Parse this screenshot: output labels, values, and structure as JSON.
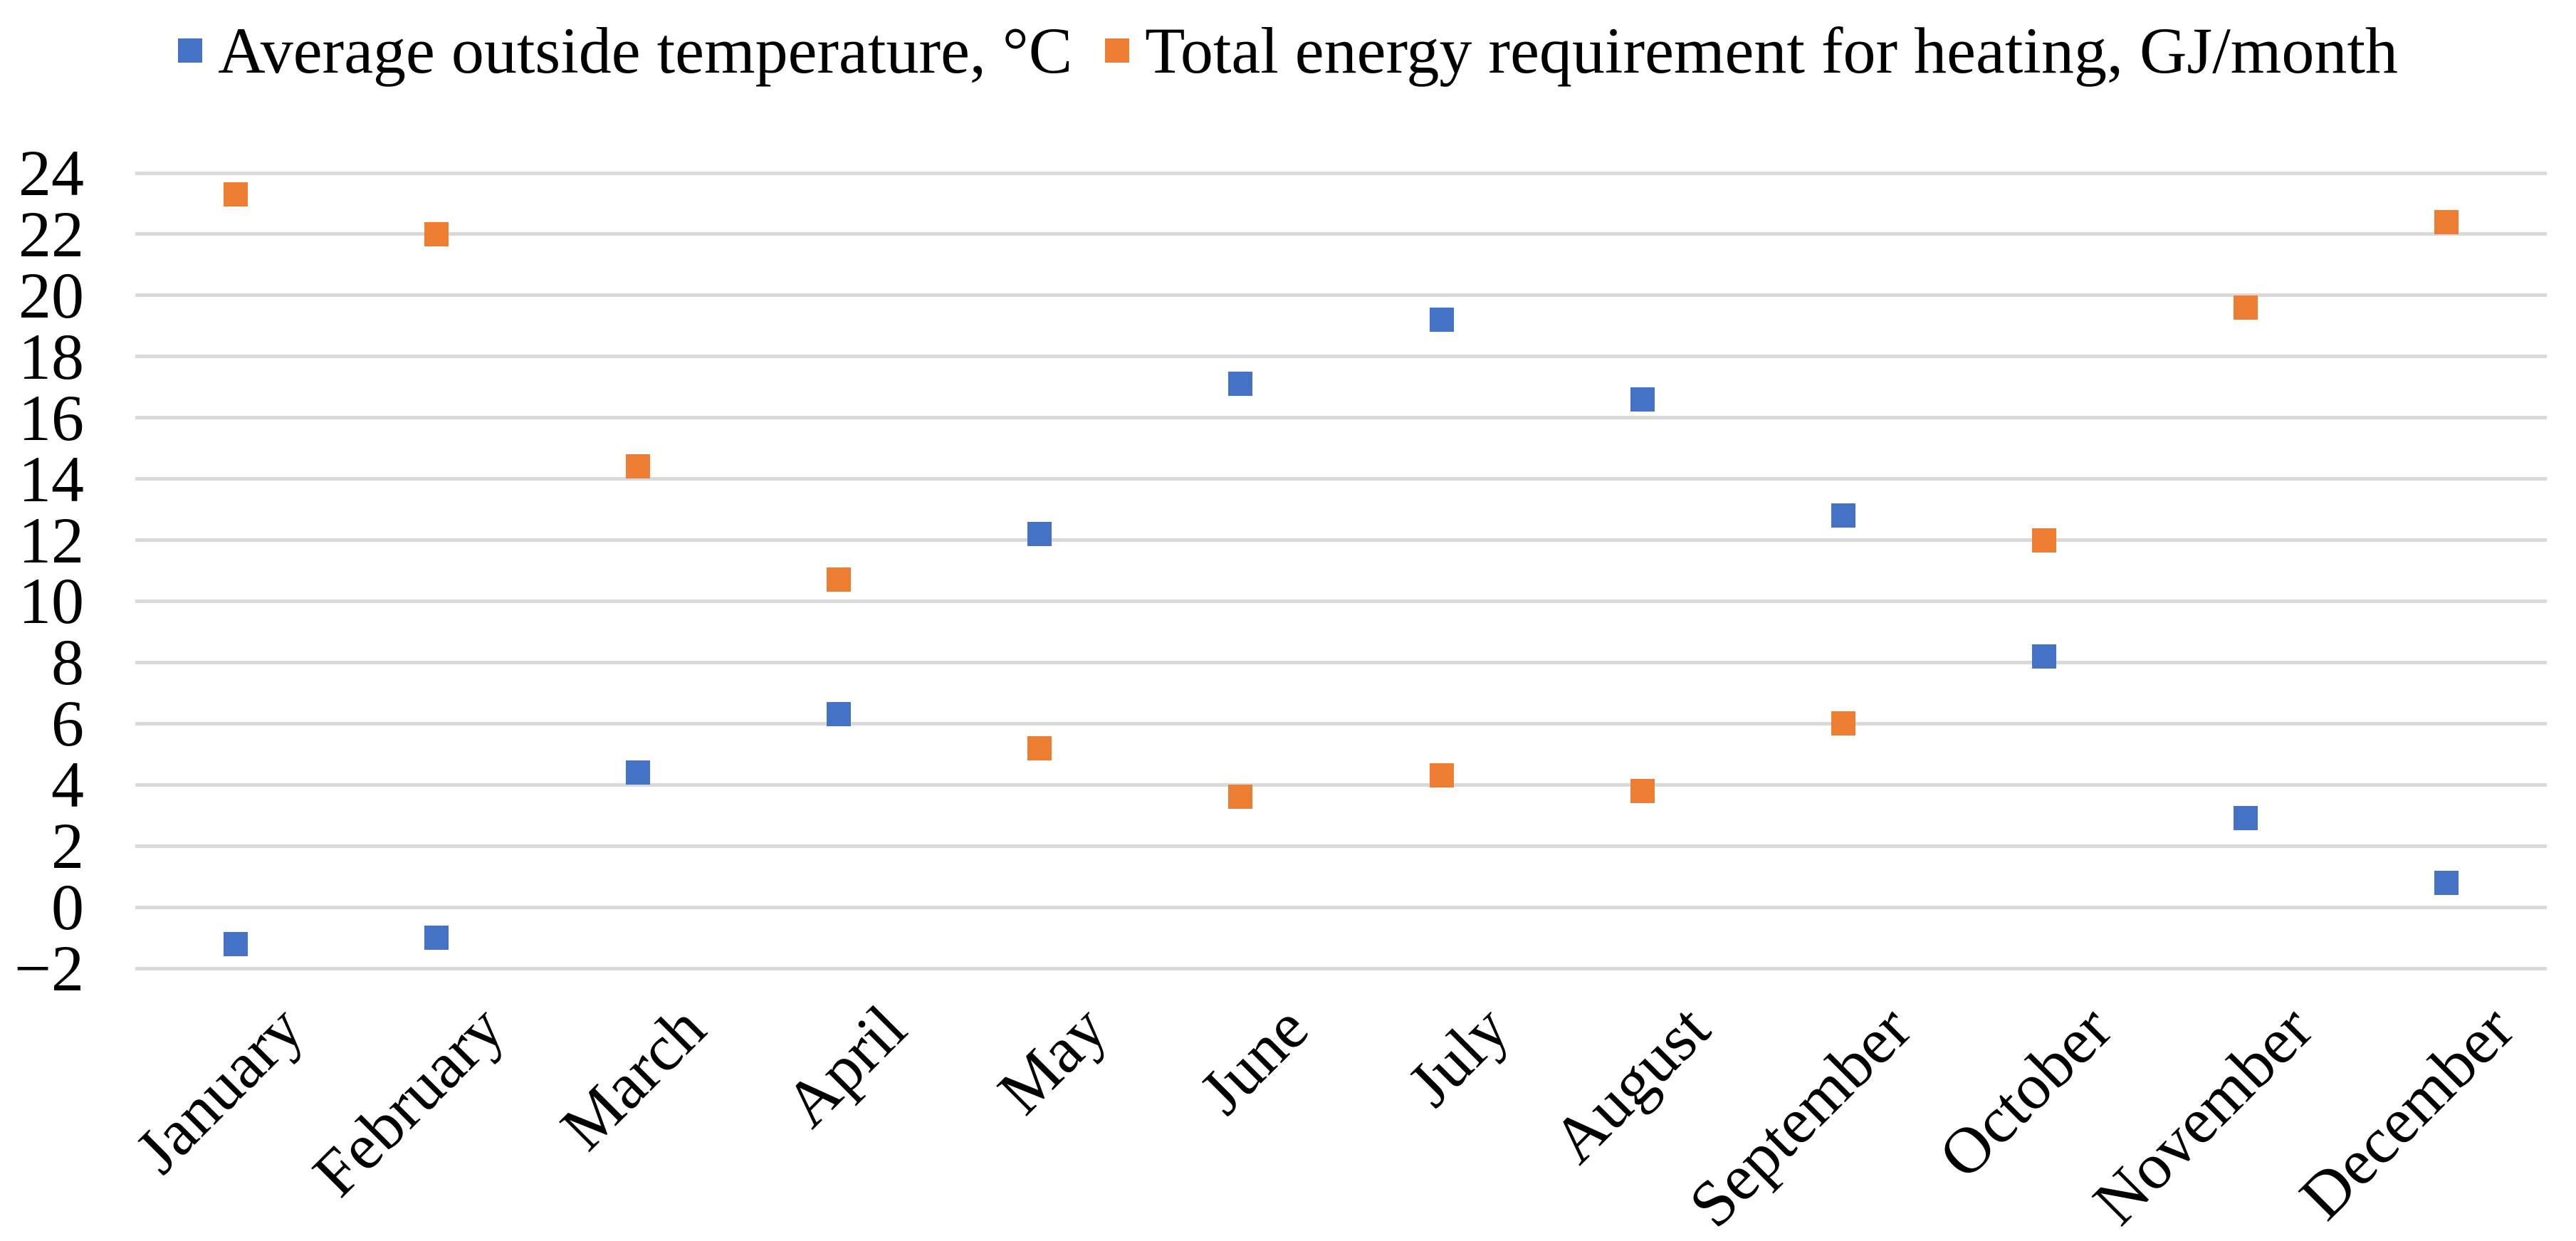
{
  "chart_data": {
    "type": "scatter",
    "title": "",
    "xlabel": "",
    "ylabel": "",
    "categories": [
      "January",
      "February",
      "March",
      "April",
      "May",
      "June",
      "July",
      "August",
      "September",
      "October",
      "November",
      "December"
    ],
    "series": [
      {
        "name": "Average outside temperature, °C",
        "marker": "square",
        "color": "#4472C4",
        "values": [
          -1.2,
          -1.0,
          4.4,
          6.3,
          12.2,
          17.1,
          19.2,
          16.6,
          12.8,
          8.2,
          2.9,
          0.8
        ]
      },
      {
        "name": "Total energy requirement for heating, GJ/month",
        "marker": "square",
        "color": "#ED7D31",
        "values": [
          23.3,
          22.0,
          14.4,
          10.7,
          5.2,
          3.6,
          4.3,
          3.8,
          6.0,
          12.0,
          19.6,
          22.4
        ]
      }
    ],
    "ylim": [
      -2,
      24
    ],
    "y_ticks": [
      24,
      22,
      20,
      18,
      16,
      14,
      12,
      10,
      8,
      6,
      4,
      2,
      0,
      -2
    ],
    "y_tick_labels": [
      "24",
      "22",
      "20",
      "18",
      "16",
      "14",
      "12",
      "10",
      "8",
      "6",
      "4",
      "2",
      "0",
      "−2"
    ],
    "grid": true,
    "gridline_color": "#D9D9D9",
    "legend_position": "top",
    "background": "#FFFFFF",
    "text_color": "#000000"
  }
}
